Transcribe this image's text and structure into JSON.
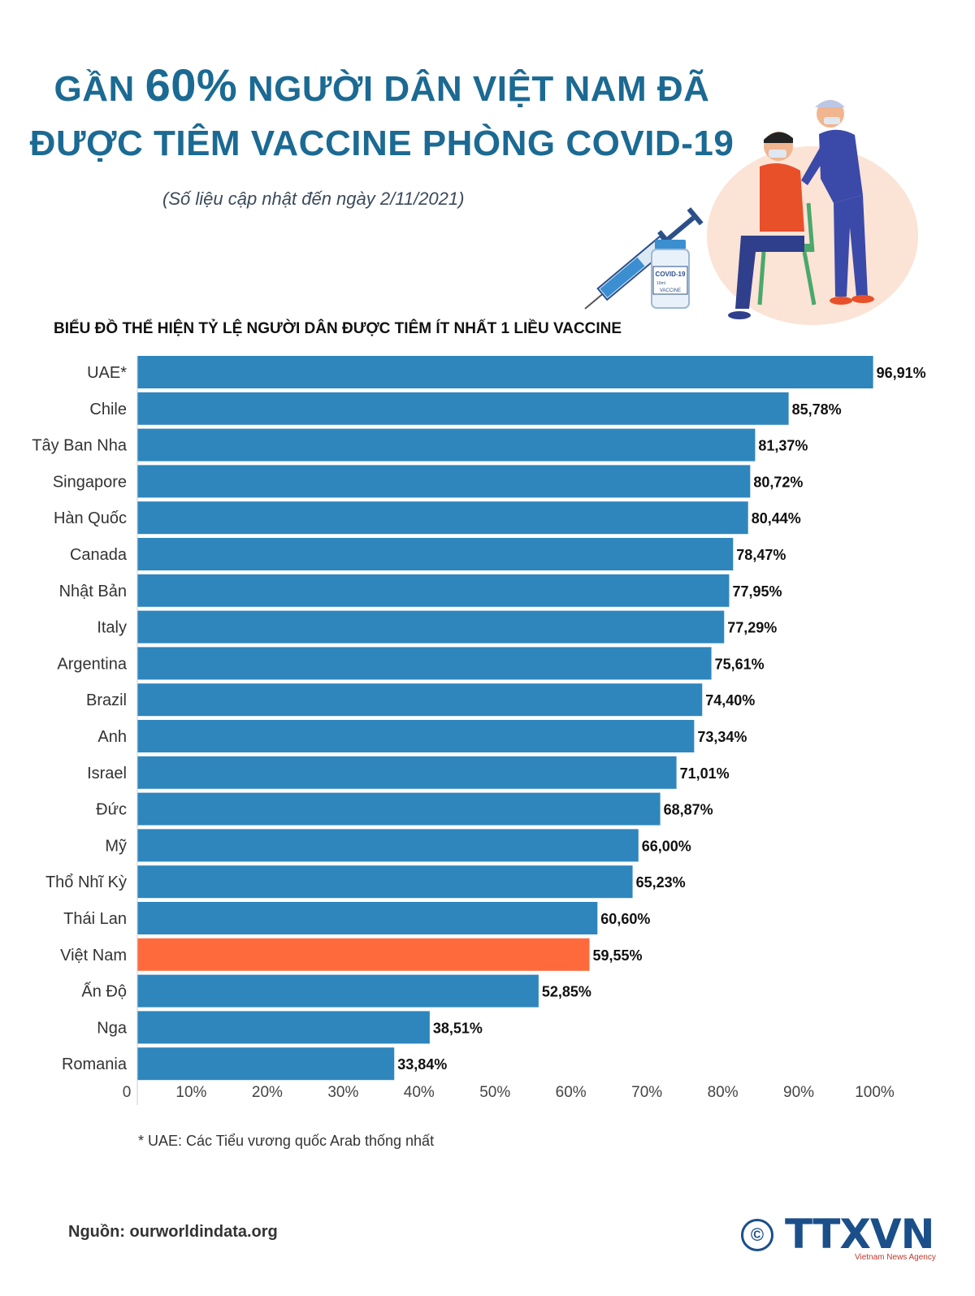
{
  "header": {
    "title_part1": "GẦN",
    "title_highlight": "60%",
    "title_part2": "NGƯỜI DÂN VIỆT NAM ĐÃ",
    "title_line2": "ĐƯỢC TIÊM VACCINE PHÒNG COVID-19",
    "subtitle": "(Số liệu cập nhật đến ngày 2/11/2021)"
  },
  "illustration": {
    "vial_label_top": "COVID-19",
    "vial_label_volume": "10ml",
    "vial_label_bottom": "VACCINE"
  },
  "chart_heading": "BIỂU ĐỒ THỂ HIỆN TỶ LỆ NGƯỜI DÂN ĐƯỢC TIÊM  ÍT NHẤT 1 LIỀU VACCINE",
  "chart_data": {
    "type": "bar",
    "orientation": "horizontal",
    "title": "BIỂU ĐỒ THỂ HIỆN TỶ LỆ NGƯỜI DÂN ĐƯỢC TIÊM  ÍT NHẤT 1 LIỀU VACCINE",
    "categories": [
      "UAE*",
      "Chile",
      "Tây Ban Nha",
      "Singapore",
      "Hàn Quốc",
      "Canada",
      "Nhật Bản",
      "Italy",
      "Argentina",
      "Brazil",
      "Anh",
      "Israel",
      "Đức",
      "Mỹ",
      "Thổ Nhĩ Kỳ",
      "Thái Lan",
      "Việt Nam",
      "Ấn Độ",
      "Nga",
      "Romania"
    ],
    "values": [
      96.91,
      85.78,
      81.37,
      80.72,
      80.44,
      78.47,
      77.95,
      77.29,
      75.61,
      74.4,
      73.34,
      71.01,
      68.87,
      66.0,
      65.23,
      60.6,
      59.55,
      52.85,
      38.51,
      33.84
    ],
    "value_labels": [
      "96,91%",
      "85,78%",
      "81,37%",
      "80,72%",
      "80,44%",
      "78,47%",
      "77,95%",
      "77,29%",
      "75,61%",
      "74,40%",
      "73,34%",
      "71,01%",
      "68,87%",
      "66,00%",
      "65,23%",
      "60,60%",
      "59,55%",
      "52,85%",
      "38,51%",
      "33,84%"
    ],
    "highlight_category": "Việt Nam",
    "x_ticks": [
      "0",
      "10%",
      "20%",
      "30%",
      "40%",
      "50%",
      "60%",
      "70%",
      "80%",
      "90%",
      "100%"
    ],
    "xlim": [
      0,
      100
    ],
    "grid": false,
    "colors": {
      "bar": "#2e86bd",
      "highlight": "#ff6a3d"
    }
  },
  "footnote": "* UAE: Các Tiểu vương quốc Arab thống nhất",
  "source": "Nguồn: ourworldindata.org",
  "logo": {
    "symbol": "©",
    "name": "TTXVN",
    "agency": "Vietnam News Agency"
  }
}
